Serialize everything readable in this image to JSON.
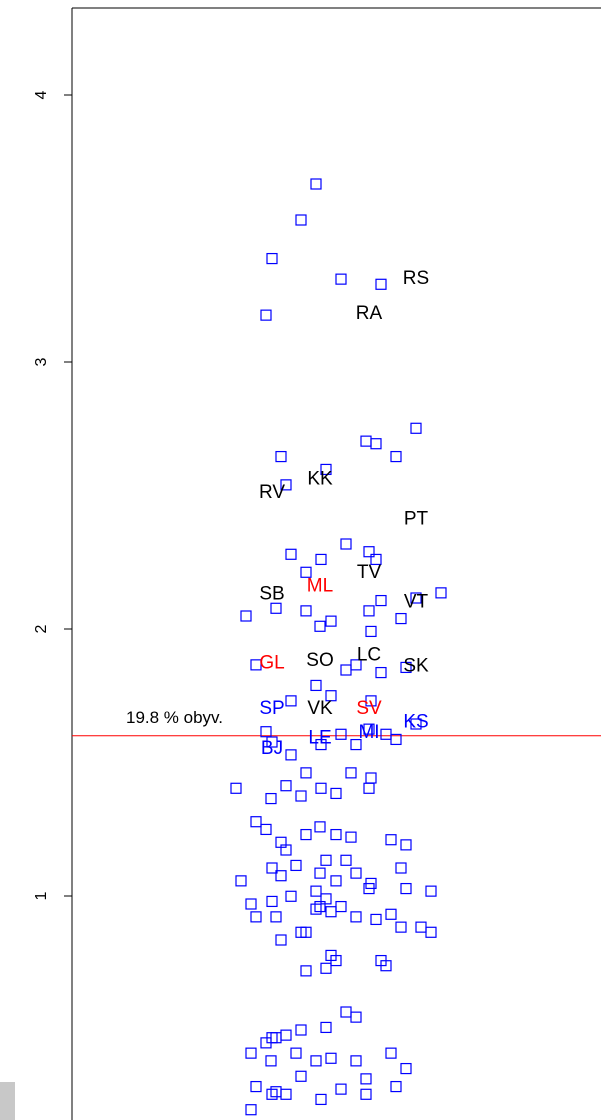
{
  "chart_data": {
    "type": "scatter",
    "title": "",
    "xlabel": "",
    "ylabel": "",
    "ylim": [
      0.0,
      4.35
    ],
    "y_ticks": [
      "1",
      "2",
      "3",
      "4"
    ],
    "y_tick_values": [
      1,
      2,
      3,
      4
    ],
    "colors": {
      "black": "#000000",
      "red": "#ff0000",
      "blue": "#0000ff",
      "reference": "#ff0000"
    },
    "reference_line": {
      "y": 1.6,
      "label": "19.8 % obyv."
    },
    "labeled_points": [
      {
        "label": "RS",
        "x": 4,
        "y": 3.31,
        "color": "black"
      },
      {
        "label": "RA",
        "x": 3,
        "y": 3.18,
        "color": "black"
      },
      {
        "label": "KK",
        "x": 2,
        "y": 2.56,
        "color": "black"
      },
      {
        "label": "RV",
        "x": 1,
        "y": 2.51,
        "color": "black"
      },
      {
        "label": "PT",
        "x": 4,
        "y": 2.41,
        "color": "black"
      },
      {
        "label": "TV",
        "x": 3,
        "y": 2.21,
        "color": "black"
      },
      {
        "label": "ML",
        "x": 2,
        "y": 2.16,
        "color": "red"
      },
      {
        "label": "SB",
        "x": 1,
        "y": 2.13,
        "color": "black"
      },
      {
        "label": "VT",
        "x": 4,
        "y": 2.1,
        "color": "black"
      },
      {
        "label": "LC",
        "x": 3,
        "y": 1.9,
        "color": "black"
      },
      {
        "label": "SO",
        "x": 2,
        "y": 1.88,
        "color": "black"
      },
      {
        "label": "GL",
        "x": 1,
        "y": 1.87,
        "color": "red"
      },
      {
        "label": "SK",
        "x": 4,
        "y": 1.86,
        "color": "black"
      },
      {
        "label": "SP",
        "x": 1,
        "y": 1.7,
        "color": "blue"
      },
      {
        "label": "VK",
        "x": 2,
        "y": 1.7,
        "color": "black"
      },
      {
        "label": "SV",
        "x": 3,
        "y": 1.7,
        "color": "red"
      },
      {
        "label": "KS",
        "x": 4,
        "y": 1.65,
        "color": "blue"
      },
      {
        "label": "MI",
        "x": 3,
        "y": 1.61,
        "color": "blue"
      },
      {
        "label": "LE",
        "x": 2,
        "y": 1.59,
        "color": "blue"
      },
      {
        "label": "BJ",
        "x": 1,
        "y": 1.55,
        "color": "blue"
      }
    ],
    "unlabeled_points": [
      [
        0.8,
        0.46
      ],
      [
        1.2,
        0.43
      ],
      [
        2.4,
        0.44
      ],
      [
        1.7,
        0.46
      ],
      [
        2.9,
        0.43
      ],
      [
        2.6,
        0.32
      ],
      [
        1.5,
        0.3
      ],
      [
        1.3,
        0.31
      ],
      [
        2.1,
        0.43
      ],
      [
        1.8,
        0.37
      ],
      [
        3.7,
        0.33
      ],
      [
        2.2,
        0.28
      ],
      [
        3.1,
        0.3
      ],
      [
        3.1,
        0.36
      ],
      [
        3.6,
        0.46
      ],
      [
        0.8,
        0.24
      ],
      [
        1.0,
        0.3
      ],
      [
        0.9,
        0.33
      ],
      [
        3.9,
        0.4
      ],
      [
        1.0,
        0.52
      ],
      [
        1.1,
        0.5
      ],
      [
        1.3,
        0.52
      ],
      [
        1.5,
        0.53
      ],
      [
        1.8,
        0.55
      ],
      [
        2.3,
        0.56
      ],
      [
        2.7,
        0.62
      ],
      [
        2.9,
        0.6
      ],
      [
        1.9,
        0.78
      ],
      [
        2.3,
        0.79
      ],
      [
        2.5,
        0.82
      ],
      [
        2.4,
        0.84
      ],
      [
        3.4,
        0.82
      ],
      [
        3.5,
        0.8
      ],
      [
        1.9,
        0.93
      ],
      [
        2.9,
        0.99
      ],
      [
        3.3,
        0.98
      ],
      [
        3.6,
        1.0
      ],
      [
        3.8,
        0.95
      ],
      [
        4.2,
        0.95
      ],
      [
        4.4,
        0.93
      ],
      [
        2.6,
        1.03
      ],
      [
        2.4,
        1.01
      ],
      [
        1.4,
        0.9
      ],
      [
        1.8,
        0.93
      ],
      [
        1.3,
        0.99
      ],
      [
        0.9,
        0.99
      ],
      [
        2.1,
        1.02
      ],
      [
        2.3,
        1.06
      ],
      [
        0.8,
        1.04
      ],
      [
        1.0,
        1.05
      ],
      [
        3.0,
        1.1
      ],
      [
        3.9,
        1.1
      ],
      [
        2.0,
        1.03
      ],
      [
        0.6,
        1.13
      ],
      [
        1.0,
        1.18
      ],
      [
        1.4,
        1.15
      ],
      [
        1.7,
        1.19
      ],
      [
        2.0,
        1.16
      ],
      [
        2.5,
        1.13
      ],
      [
        3.2,
        1.12
      ],
      [
        2.9,
        1.16
      ],
      [
        3.8,
        1.18
      ],
      [
        4.4,
        1.09
      ],
      [
        1.6,
        1.07
      ],
      [
        2.1,
        1.09
      ],
      [
        1.5,
        1.25
      ],
      [
        2.3,
        1.21
      ],
      [
        2.7,
        1.21
      ],
      [
        3.6,
        1.29
      ],
      [
        3.9,
        1.27
      ],
      [
        1.4,
        1.28
      ],
      [
        1.1,
        1.33
      ],
      [
        0.9,
        1.36
      ],
      [
        2.8,
        1.3
      ],
      [
        1.9,
        1.31
      ],
      [
        2.0,
        1.34
      ],
      [
        2.5,
        1.31
      ],
      [
        0.5,
        1.49
      ],
      [
        1.2,
        1.45
      ],
      [
        1.5,
        1.5
      ],
      [
        1.8,
        1.46
      ],
      [
        2.2,
        1.49
      ],
      [
        2.5,
        1.47
      ],
      [
        3.0,
        1.49
      ],
      [
        3.2,
        1.53
      ],
      [
        2.8,
        1.55
      ],
      [
        1.9,
        1.55
      ],
      [
        1.0,
        1.67
      ],
      [
        1.6,
        1.62
      ],
      [
        2.2,
        1.66
      ],
      [
        2.6,
        1.7
      ],
      [
        3.0,
        1.72
      ],
      [
        3.5,
        1.7
      ],
      [
        3.7,
        1.68
      ],
      [
        4.1,
        1.74
      ],
      [
        1.1,
        1.71
      ],
      [
        2.9,
        1.66
      ],
      [
        1.6,
        1.83
      ],
      [
        2.4,
        1.85
      ],
      [
        3.2,
        1.83
      ],
      [
        2.1,
        1.89
      ],
      [
        0.9,
        1.97
      ],
      [
        2.7,
        1.95
      ],
      [
        2.9,
        1.97
      ],
      [
        3.9,
        1.96
      ],
      [
        3.4,
        1.94
      ],
      [
        0.7,
        2.16
      ],
      [
        1.3,
        2.19
      ],
      [
        1.9,
        2.18
      ],
      [
        2.4,
        2.14
      ],
      [
        3.0,
        2.18
      ],
      [
        3.2,
        2.1
      ],
      [
        3.4,
        2.22
      ],
      [
        3.8,
        2.15
      ],
      [
        4.0,
        2.23
      ],
      [
        4.6,
        2.25
      ],
      [
        2.0,
        2.12
      ],
      [
        1.6,
        2.4
      ],
      [
        2.2,
        2.38
      ],
      [
        3.0,
        2.41
      ],
      [
        3.3,
        2.38
      ],
      [
        1.9,
        2.33
      ],
      [
        2.7,
        2.44
      ],
      [
        1.4,
        2.78
      ],
      [
        1.5,
        2.67
      ],
      [
        2.3,
        2.73
      ],
      [
        3.1,
        2.84
      ],
      [
        3.3,
        2.83
      ],
      [
        3.7,
        2.78
      ],
      [
        4.0,
        2.89
      ],
      [
        1.1,
        3.33
      ],
      [
        1.0,
        3.55
      ],
      [
        2.6,
        3.47
      ],
      [
        3.4,
        3.45
      ],
      [
        1.8,
        3.7
      ],
      [
        2.1,
        3.84
      ]
    ]
  }
}
